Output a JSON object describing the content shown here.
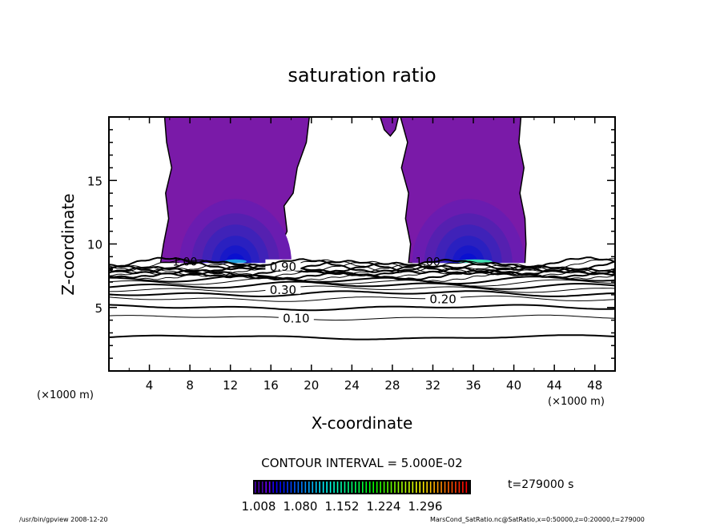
{
  "chart_data": {
    "type": "contour",
    "title": "saturation ratio",
    "xlabel": "X-coordinate",
    "ylabel": "Z-coordinate",
    "x_unit_left": "(×1000 m)",
    "x_unit_right": "(×1000 m)",
    "xlim": [
      0,
      50
    ],
    "ylim": [
      0,
      20
    ],
    "xticks": [
      4,
      8,
      12,
      16,
      20,
      24,
      28,
      32,
      36,
      40,
      44,
      48
    ],
    "yticks": [
      5,
      10,
      15
    ],
    "contour_interval_text": "CONTOUR INTERVAL = 5.000E-02",
    "time_text": "t=279000 s",
    "colorbar": {
      "ticks": [
        "1.008",
        "1.080",
        "1.152",
        "1.224",
        "1.296"
      ],
      "range": [
        1.0,
        1.34
      ]
    },
    "contour_levels": [
      {
        "value": 0.05,
        "z": 2.65
      },
      {
        "value": 0.1,
        "z": 4.2,
        "label": "0.10",
        "label_x": 18.5
      },
      {
        "value": 0.15,
        "z": 5.0
      },
      {
        "value": 0.2,
        "z": 5.7,
        "label": "0.20",
        "label_x": 33
      },
      {
        "value": 0.25,
        "z": 6.1
      },
      {
        "value": 0.3,
        "z": 6.45,
        "label": "0.30",
        "label_x": 17.2
      },
      {
        "value": 0.35,
        "z": 6.75
      },
      {
        "value": 0.4,
        "z": 7.0
      },
      {
        "value": 0.45,
        "z": 7.2
      },
      {
        "value": 0.5,
        "z": 7.4
      },
      {
        "value": 0.55,
        "z": 7.55
      },
      {
        "value": 0.6,
        "z": 7.7
      },
      {
        "value": 0.65,
        "z": 7.82
      },
      {
        "value": 0.7,
        "z": 7.93
      },
      {
        "value": 0.75,
        "z": 8.03
      },
      {
        "value": 0.8,
        "z": 8.12
      },
      {
        "value": 0.85,
        "z": 8.2
      },
      {
        "value": 0.9,
        "z": 8.28,
        "label": "0.90",
        "label_x": 17.2
      },
      {
        "value": 0.95,
        "z": 8.36
      }
    ],
    "supersaturated_regions": [
      {
        "label": "1.00",
        "label_x": 7.5,
        "outline": [
          [
            5.1,
            8.5
          ],
          [
            5.4,
            10
          ],
          [
            5.9,
            12
          ],
          [
            5.6,
            14
          ],
          [
            6.2,
            16
          ],
          [
            5.7,
            18
          ],
          [
            5.5,
            20
          ],
          [
            19.8,
            20
          ],
          [
            19.5,
            18
          ],
          [
            18.6,
            16
          ],
          [
            18.2,
            14
          ],
          [
            17.3,
            13
          ],
          [
            17.6,
            11
          ],
          [
            17,
            10
          ],
          [
            17.3,
            8.5
          ]
        ],
        "peak_x": 12.5
      },
      {
        "outline": [
          [
            26.8,
            20
          ],
          [
            28.6,
            20
          ],
          [
            28.3,
            19
          ],
          [
            27.8,
            18.5
          ],
          [
            27.2,
            19
          ]
        ]
      },
      {
        "label": "1.00",
        "label_x": 31.5,
        "outline": [
          [
            29.6,
            8.5
          ],
          [
            29.8,
            10
          ],
          [
            29.3,
            12
          ],
          [
            29.6,
            14
          ],
          [
            28.9,
            16
          ],
          [
            29.5,
            18
          ],
          [
            28.8,
            20
          ],
          [
            40.7,
            20
          ],
          [
            40.5,
            18
          ],
          [
            41,
            16
          ],
          [
            40.6,
            14
          ],
          [
            41.1,
            12
          ],
          [
            41.2,
            10
          ],
          [
            41.1,
            8.5
          ]
        ],
        "peak_x": 35.5
      }
    ]
  },
  "footer": {
    "left": "/usr/bin/gpview  2008-12-20",
    "right": "MarsCond_SatRatio.nc@SatRatio,x=0:50000,z=0:20000,t=279000"
  }
}
